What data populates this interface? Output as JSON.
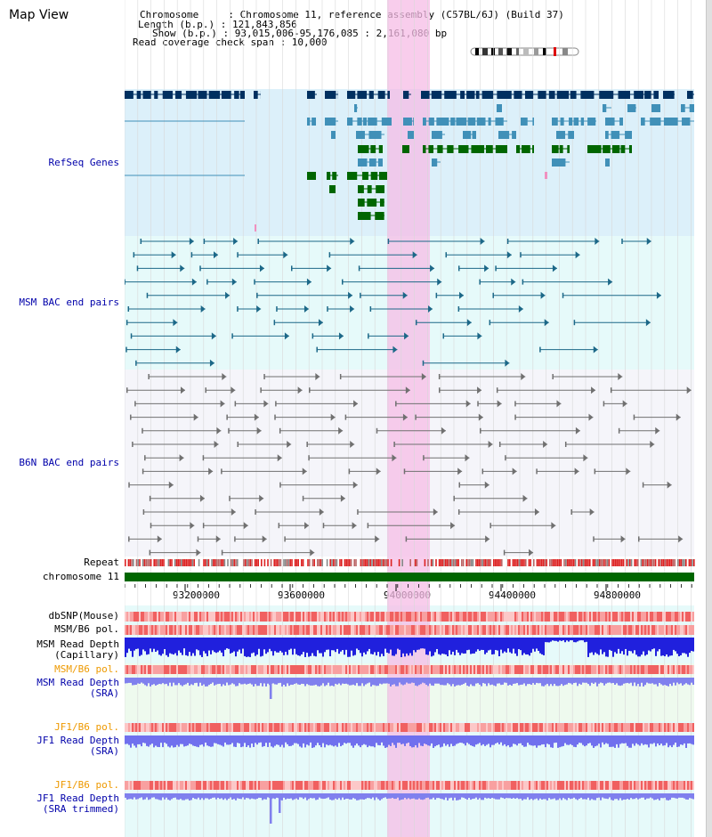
{
  "window": {
    "title": "Map View"
  },
  "header": {
    "chromosome_line": "Chromosome     : Chromosome 11, reference assembly (C57BL/6J) (Build 37)",
    "length_line": "Length (b.p.) : 121,843,856",
    "show_line": "Show (b.p.) : 93,015,006-95,176,085 : 2,161,080 bp",
    "coverage_line": "Read coverage check span : 10,000"
  },
  "tracks": {
    "refseq": "RefSeq Genes",
    "msm_bac": "MSM BAC end pairs",
    "b6n_bac": "B6N BAC end pairs",
    "repeat": "Repeat",
    "chromosome": "chromosome 11",
    "dbsnp": "dbSNP(Mouse)",
    "msm_b6_pol": "MSM/B6 pol.",
    "msm_depth_cap_1": "MSM Read Depth",
    "msm_depth_cap_2": "(Capillary)",
    "msm_b6_pol_2": "MSM/B6 pol.",
    "msm_depth_sra_1": "MSM Read Depth",
    "msm_depth_sra_2": "(SRA)",
    "jf1_b6_pol": "JF1/B6 pol.",
    "jf1_depth_sra_1": "JF1 Read Depth",
    "jf1_depth_sra_2": "(SRA)",
    "jf1_b6_pol_2": "JF1/B6 pol.",
    "jf1_depth_trim_1": "JF1 Read Depth",
    "jf1_depth_trim_2": "(SRA trimmed)"
  },
  "axis": {
    "ticks": [
      "93200000",
      "93600000",
      "94000000",
      "94400000",
      "94800000"
    ]
  },
  "colors": {
    "refseq_bg": "#dcf0fa",
    "bac_bg": "#e6fafa",
    "b6n_bg": "#f5f5fa",
    "highlight": "#f5bce6",
    "gene_dark": "#003060",
    "gene_mid": "#4090b8",
    "gene_green": "#006600",
    "chromosome_bar": "#006600"
  }
}
